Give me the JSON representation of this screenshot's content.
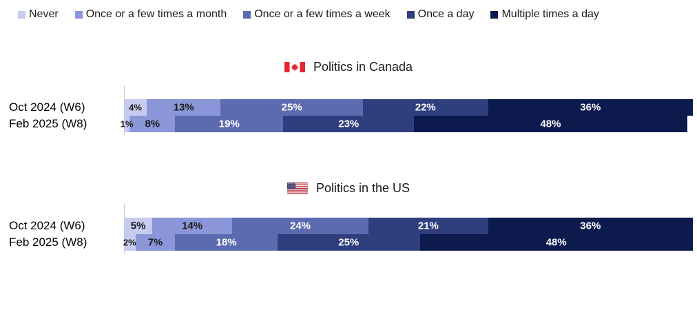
{
  "legend": {
    "items": [
      {
        "label": "Never",
        "color": "#c6cbef"
      },
      {
        "label": "Once or a few times a month",
        "color": "#8b96d9"
      },
      {
        "label": "Once or a few times a week",
        "color": "#5c6ab0"
      },
      {
        "label": "Once a day",
        "color": "#2f3e7c"
      },
      {
        "label": "Multiple times a day",
        "color": "#0c1a4e"
      }
    ]
  },
  "chart_data": [
    {
      "type": "bar",
      "orientation": "horizontal",
      "stacked": true,
      "title": "Politics in Canada",
      "flag_icon": "canada-flag-icon",
      "categories": [
        "Oct 2024 (W6)",
        "Feb 2025 (W8)"
      ],
      "series": [
        {
          "name": "Never",
          "values": [
            4,
            1
          ]
        },
        {
          "name": "Once or a few times a month",
          "values": [
            13,
            8
          ]
        },
        {
          "name": "Once or a few times a week",
          "values": [
            25,
            19
          ]
        },
        {
          "name": "Once a day",
          "values": [
            22,
            23
          ]
        },
        {
          "name": "Multiple times a day",
          "values": [
            36,
            48
          ]
        }
      ],
      "value_suffix": "%",
      "xlim": [
        0,
        100
      ],
      "legend_position": "top",
      "grid": false
    },
    {
      "type": "bar",
      "orientation": "horizontal",
      "stacked": true,
      "title": "Politics in the US",
      "flag_icon": "us-flag-icon",
      "categories": [
        "Oct 2024 (W6)",
        "Feb 2025 (W8)"
      ],
      "series": [
        {
          "name": "Never",
          "values": [
            5,
            2
          ]
        },
        {
          "name": "Once or a few times a month",
          "values": [
            14,
            7
          ]
        },
        {
          "name": "Once or a few times a week",
          "values": [
            24,
            18
          ]
        },
        {
          "name": "Once a day",
          "values": [
            21,
            25
          ]
        },
        {
          "name": "Multiple times a day",
          "values": [
            36,
            48
          ]
        }
      ],
      "value_suffix": "%",
      "xlim": [
        0,
        100
      ],
      "legend_position": "top",
      "grid": false
    }
  ]
}
